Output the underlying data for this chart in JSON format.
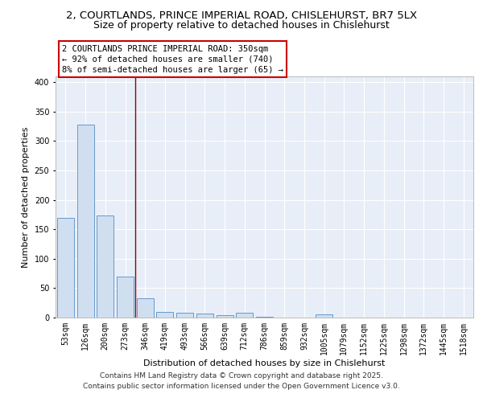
{
  "title_line1": "2, COURTLANDS, PRINCE IMPERIAL ROAD, CHISLEHURST, BR7 5LX",
  "title_line2": "Size of property relative to detached houses in Chislehurst",
  "xlabel": "Distribution of detached houses by size in Chislehurst",
  "ylabel": "Number of detached properties",
  "categories": [
    "53sqm",
    "126sqm",
    "200sqm",
    "273sqm",
    "346sqm",
    "419sqm",
    "493sqm",
    "566sqm",
    "639sqm",
    "712sqm",
    "786sqm",
    "859sqm",
    "932sqm",
    "1005sqm",
    "1079sqm",
    "1152sqm",
    "1225sqm",
    "1298sqm",
    "1372sqm",
    "1445sqm",
    "1518sqm"
  ],
  "values": [
    170,
    328,
    174,
    70,
    33,
    10,
    8,
    7,
    4,
    8,
    1,
    0,
    0,
    5,
    0,
    0,
    0,
    0,
    0,
    0,
    0
  ],
  "bar_color": "#d0dff0",
  "bar_edge_color": "#6699cc",
  "vline_x_index": 3,
  "vline_color": "#990000",
  "annotation_box_text": "2 COURTLANDS PRINCE IMPERIAL ROAD: 350sqm\n← 92% of detached houses are smaller (740)\n8% of semi-detached houses are larger (65) →",
  "annotation_box_color": "#ffffff",
  "annotation_box_edge_color": "#cc0000",
  "ylim": [
    0,
    410
  ],
  "yticks": [
    0,
    50,
    100,
    150,
    200,
    250,
    300,
    350,
    400
  ],
  "bg_color": "#e8eef8",
  "grid_color": "#ffffff",
  "footer_line1": "Contains HM Land Registry data © Crown copyright and database right 2025.",
  "footer_line2": "Contains public sector information licensed under the Open Government Licence v3.0.",
  "title_fontsize": 9.5,
  "subtitle_fontsize": 9,
  "tick_fontsize": 7,
  "label_fontsize": 8,
  "annotation_fontsize": 7.5,
  "footer_fontsize": 6.5
}
